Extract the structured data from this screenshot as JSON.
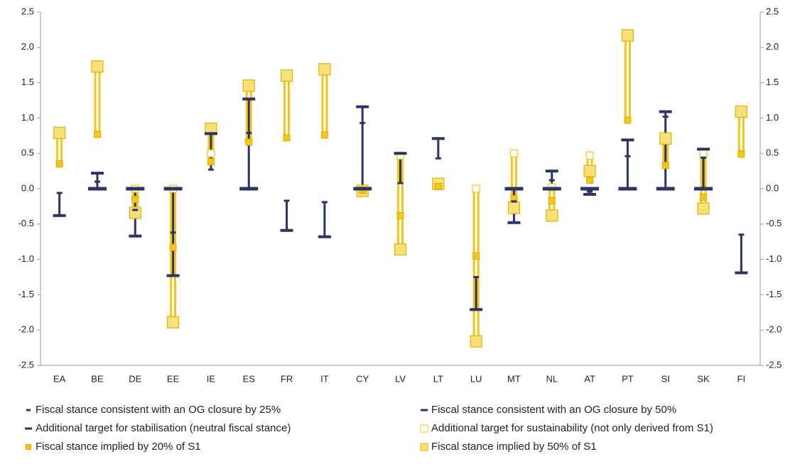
{
  "chart_data": {
    "type": "range-marker",
    "categories": [
      "EA",
      "BE",
      "DE",
      "EE",
      "IE",
      "ES",
      "FR",
      "IT",
      "CY",
      "LV",
      "LT",
      "LU",
      "MT",
      "NL",
      "AT",
      "PT",
      "SI",
      "SK",
      "FI"
    ],
    "ylim": [
      -2.5,
      2.5
    ],
    "yticks": [
      -2.5,
      {
        "value": -2,
        "label": "-2.0"
      },
      -1.5,
      {
        "value": -1,
        "label": "-1.0"
      },
      -0.5,
      {
        "value": 0,
        "label": "0.0"
      },
      0.5,
      {
        "value": 1,
        "label": "1.0"
      },
      1.5,
      {
        "value": 2,
        "label": "2.0"
      },
      2.5
    ],
    "y2lim": [
      -2.5,
      2.5
    ],
    "y2ticks": [
      -2.5,
      {
        "value": -2,
        "label": "-2.0"
      },
      -1.5,
      {
        "value": -1,
        "label": "-1.0"
      },
      -0.5,
      {
        "value": 0,
        "label": "0.0"
      },
      0.5,
      {
        "value": 1,
        "label": "1.0"
      },
      1.5,
      {
        "value": 2,
        "label": "2.0"
      },
      2.5
    ],
    "grid": false,
    "range_colors": {
      "blue": "#2b3468",
      "yellow": "#f5c518"
    },
    "series": [
      {
        "name": "Fiscal stance consistent with an OG closure by 25%",
        "color": "#2b3468",
        "marker": "dash-small",
        "group": "blue",
        "values": [
          -0.06,
          0.1,
          -0.3,
          -0.62,
          0.27,
          0.79,
          -0.17,
          -0.19,
          0.93,
          0.08,
          0.43,
          -1.25,
          -0.18,
          0.12,
          -0.04,
          0.46,
          1.02,
          0.44,
          -0.65
        ]
      },
      {
        "name": "Fiscal stance consistent with an OG closure by 50%",
        "color": "#2b3468",
        "marker": "dash",
        "group": "blue",
        "values": [
          -0.38,
          0.22,
          -0.67,
          -1.23,
          0.78,
          1.27,
          -0.59,
          -0.68,
          1.16,
          0.5,
          0.71,
          -1.71,
          -0.48,
          0.25,
          -0.08,
          0.69,
          1.09,
          0.56,
          -1.19
        ]
      },
      {
        "name": "Additional target for stabilisation (neutral fiscal stance)",
        "color": "#2b3468",
        "marker": "dash-thick",
        "group": "blue",
        "values": [
          null,
          0,
          0,
          0,
          null,
          0,
          null,
          null,
          0,
          null,
          null,
          null,
          0,
          0,
          0,
          0,
          0,
          0,
          null
        ]
      },
      {
        "name": "Additional target for sustainability (not only derived from S1)",
        "color": "#f5c518",
        "marker": "square-open",
        "group": "yellow",
        "values": [
          null,
          null,
          0,
          0,
          0.5,
          null,
          null,
          null,
          null,
          0.47,
          null,
          0,
          0.5,
          0.02,
          0.47,
          null,
          null,
          0.5,
          null
        ]
      },
      {
        "name": "Fiscal stance implied by 20% of S1",
        "color": "#f5c518",
        "marker": "square-small",
        "group": "yellow",
        "values": [
          0.35,
          0.77,
          -0.15,
          -0.83,
          0.38,
          0.66,
          0.72,
          0.76,
          -0.02,
          -0.38,
          0.03,
          -0.95,
          -0.14,
          -0.17,
          0.12,
          0.97,
          0.33,
          -0.12,
          0.49
        ]
      },
      {
        "name": "Fiscal stance implied by 50% of S1",
        "color": "#f9df7a",
        "marker": "square-large",
        "group": "yellow",
        "values": [
          0.79,
          1.73,
          -0.34,
          -1.89,
          0.85,
          1.46,
          1.6,
          1.69,
          -0.03,
          -0.86,
          0.07,
          -2.16,
          -0.27,
          -0.38,
          0.25,
          2.17,
          0.71,
          -0.28,
          1.09
        ]
      }
    ]
  }
}
